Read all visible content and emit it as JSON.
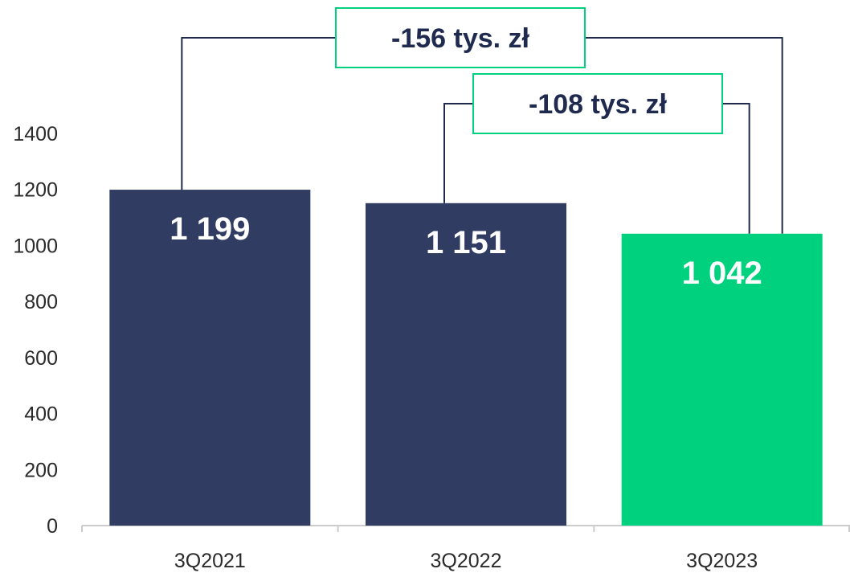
{
  "chart_data": {
    "type": "bar",
    "categories": [
      "3Q2021",
      "3Q2022",
      "3Q2023"
    ],
    "values": [
      1199,
      1151,
      1042
    ],
    "value_labels": [
      "1 199",
      "1 151",
      "1 042"
    ],
    "ylim": [
      0,
      1400
    ],
    "yticks": [
      0,
      200,
      400,
      600,
      800,
      1000,
      1200,
      1400
    ],
    "grid": false,
    "legend": "none",
    "bar_colors": [
      "#313c63",
      "#313c63",
      "#00d17f"
    ],
    "annotations": [
      {
        "text": "-156 tys. zł",
        "from": 0,
        "to": 2
      },
      {
        "text": "-108 tys. zł",
        "from": 1,
        "to": 2
      }
    ]
  },
  "colors": {
    "bracket": "#1f2a4e",
    "box_border": "#00d17f",
    "axis": "#cccccc"
  }
}
